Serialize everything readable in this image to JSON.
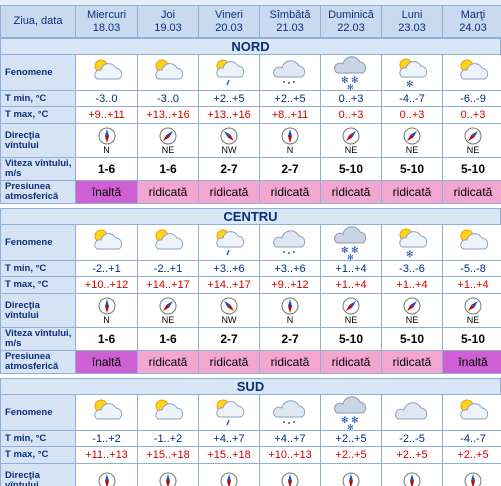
{
  "header": {
    "label": "Ziua, data",
    "days": [
      {
        "name": "Miercuri",
        "date": "18.03"
      },
      {
        "name": "Joi",
        "date": "19.03"
      },
      {
        "name": "Vineri",
        "date": "20.03"
      },
      {
        "name": "Sîmbătă",
        "date": "21.03"
      },
      {
        "name": "Duminică",
        "date": "22.03"
      },
      {
        "name": "Luni",
        "date": "23.03"
      },
      {
        "name": "Marţi",
        "date": "24.03"
      }
    ]
  },
  "sections": [
    {
      "name": "NORD",
      "rows": {
        "fenomene": {
          "label": "Fenomene"
        },
        "tmin": {
          "label": "T min, °C",
          "cells": [
            "-3..0",
            "-3..0",
            "+2..+5",
            "+2..+5",
            "0..+3",
            "-4..-7",
            "-6..-9"
          ]
        },
        "tmax": {
          "label": "T max, °C",
          "cells": [
            "+9..+11",
            "+13..+16",
            "+13..+16",
            "+8..+11",
            "0..+3",
            "0..+3",
            "0..+3"
          ]
        },
        "dir": {
          "label": "Direcţia vîntului",
          "cells": [
            "N",
            "NE",
            "NW",
            "N",
            "NE",
            "NE",
            "NE"
          ]
        },
        "speed": {
          "label": "Viteza vîntului, m/s",
          "cells": [
            "1-6",
            "1-6",
            "2-7",
            "2-7",
            "5-10",
            "5-10",
            "5-10"
          ]
        },
        "pressure": {
          "label": "Presiunea atmosferică",
          "cells": [
            "înaltă",
            "ridicată",
            "ridicată",
            "ridicată",
            "ridicată",
            "ridicată",
            "ridicată"
          ]
        }
      }
    },
    {
      "name": "CENTRU",
      "rows": {
        "fenomene": {
          "label": "Fenomene"
        },
        "tmin": {
          "label": "T min, °C",
          "cells": [
            "-2..+1",
            "-2..+1",
            "+3..+6",
            "+3..+6",
            "+1..+4",
            "-3..-6",
            "-5..-8"
          ]
        },
        "tmax": {
          "label": "T max, °C",
          "cells": [
            "+10..+12",
            "+14..+17",
            "+14..+17",
            "+9..+12",
            "+1..+4",
            "+1..+4",
            "+1..+4"
          ]
        },
        "dir": {
          "label": "Direcţia vîntului",
          "cells": [
            "N",
            "NE",
            "NW",
            "N",
            "NE",
            "NE",
            "NE"
          ]
        },
        "speed": {
          "label": "Viteza vîntului, m/s",
          "cells": [
            "1-6",
            "1-6",
            "2-7",
            "2-7",
            "5-10",
            "5-10",
            "5-10"
          ]
        },
        "pressure": {
          "label": "Presiunea atmosferică",
          "cells": [
            "înaltă",
            "ridicată",
            "ridicată",
            "ridicată",
            "ridicată",
            "ridicată",
            "înaltă"
          ]
        }
      }
    },
    {
      "name": "SUD",
      "rows": {
        "fenomene": {
          "label": "Fenomene"
        },
        "tmin": {
          "label": "T min, °C",
          "cells": [
            "-1..+2",
            "-1..+2",
            "+4..+7",
            "+4..+7",
            "+2..+5",
            "-2..-5",
            "-4..-7"
          ]
        },
        "tmax": {
          "label": "T max, °C",
          "cells": [
            "+11..+13",
            "+15..+18",
            "+15..+18",
            "+10..+13",
            "+2..+5",
            "+2..+5",
            "+2..+5"
          ]
        },
        "dir": {
          "label": "Direcţia vîntului"
        }
      }
    }
  ]
}
